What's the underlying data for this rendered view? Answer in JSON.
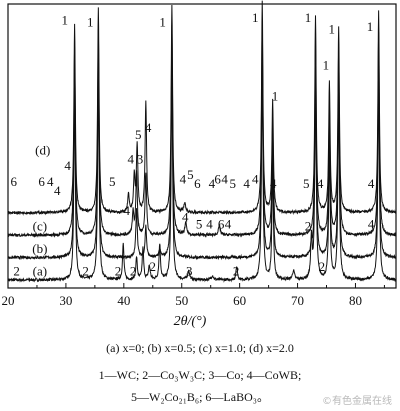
{
  "chart_data": {
    "type": "line",
    "xlabel": "2θ/(°)",
    "xlim": [
      20,
      87
    ],
    "xticks": [
      20,
      30,
      40,
      50,
      60,
      70,
      80
    ],
    "grid": false,
    "series": [
      {
        "name": "(a)",
        "baseline": 0.0,
        "noise": 0.006,
        "peaks": [
          [
            31.5,
            0.84,
            0.15
          ],
          [
            35.6,
            0.92,
            0.15
          ],
          [
            39.9,
            0.16,
            0.15
          ],
          [
            42.2,
            0.1,
            0.15
          ],
          [
            43.3,
            0.14,
            0.15
          ],
          [
            44.4,
            0.06,
            0.18
          ],
          [
            46.2,
            0.16,
            0.15
          ],
          [
            48.3,
            0.93,
            0.15
          ],
          [
            51.2,
            0.04,
            0.2
          ],
          [
            55.3,
            0.02,
            0.2
          ],
          [
            59.5,
            0.06,
            0.15
          ],
          [
            63.9,
            0.94,
            0.15
          ],
          [
            65.7,
            0.5,
            0.15
          ],
          [
            69.3,
            0.04,
            0.2
          ],
          [
            72.4,
            0.18,
            0.15
          ],
          [
            73.1,
            0.88,
            0.15
          ],
          [
            75.5,
            0.58,
            0.15
          ],
          [
            77.1,
            0.83,
            0.15
          ],
          [
            84.0,
            0.9,
            0.15
          ]
        ],
        "labels": [
          [
            "2",
            21.5,
            0.02
          ],
          [
            "(a)",
            25.5,
            0.02
          ],
          [
            "2",
            33.4,
            0.02
          ],
          [
            "2",
            39.0,
            0.02
          ],
          [
            "2",
            41.6,
            0.02
          ],
          [
            "2",
            45.0,
            0.04
          ],
          [
            "3",
            51.3,
            0.02
          ],
          [
            "2",
            59.4,
            0.02
          ],
          [
            "2",
            71.8,
            0.22
          ],
          [
            "2",
            74.2,
            0.04
          ]
        ]
      },
      {
        "name": "(b)",
        "baseline": 0.1,
        "noise": 0.006,
        "peaks": [
          [
            31.5,
            0.84,
            0.15
          ],
          [
            35.6,
            0.92,
            0.15
          ],
          [
            42.2,
            0.22,
            0.15
          ],
          [
            43.8,
            0.14,
            0.15
          ],
          [
            46.2,
            0.03,
            0.2
          ],
          [
            48.3,
            0.93,
            0.15
          ],
          [
            63.9,
            0.94,
            0.15
          ],
          [
            65.7,
            0.5,
            0.15
          ],
          [
            72.4,
            0.05,
            0.15
          ],
          [
            73.1,
            0.88,
            0.15
          ],
          [
            75.5,
            0.58,
            0.15
          ],
          [
            77.1,
            0.83,
            0.15
          ],
          [
            84.0,
            0.9,
            0.15
          ]
        ],
        "labels": [
          [
            "(b)",
            25.5,
            0.12
          ]
        ]
      },
      {
        "name": "(c)",
        "baseline": 0.2,
        "noise": 0.006,
        "peaks": [
          [
            31.5,
            0.84,
            0.15
          ],
          [
            35.6,
            0.92,
            0.15
          ],
          [
            41.6,
            0.1,
            0.15
          ],
          [
            42.2,
            0.28,
            0.15
          ],
          [
            43.8,
            0.28,
            0.15
          ],
          [
            48.3,
            0.93,
            0.15
          ],
          [
            50.7,
            0.05,
            0.2
          ],
          [
            56.5,
            0.04,
            0.2
          ],
          [
            63.9,
            0.94,
            0.15
          ],
          [
            65.7,
            0.5,
            0.15
          ],
          [
            73.1,
            0.88,
            0.15
          ],
          [
            75.5,
            0.58,
            0.15
          ],
          [
            77.1,
            0.83,
            0.15
          ],
          [
            84.0,
            0.9,
            0.15
          ]
        ],
        "labels": [
          [
            "(c)",
            25.5,
            0.22
          ],
          [
            "4",
            40.5,
            0.29
          ],
          [
            "4",
            50.6,
            0.26
          ],
          [
            "5",
            53.0,
            0.23
          ],
          [
            "4",
            54.8,
            0.23
          ],
          [
            "6",
            56.8,
            0.23
          ],
          [
            "4",
            58.0,
            0.23
          ],
          [
            "4",
            82.7,
            0.23
          ]
        ]
      },
      {
        "name": "(d)",
        "baseline": 0.3,
        "noise": 0.006,
        "peaks": [
          [
            31.5,
            0.84,
            0.15
          ],
          [
            35.6,
            0.92,
            0.15
          ],
          [
            40.8,
            0.08,
            0.15
          ],
          [
            41.8,
            0.16,
            0.15
          ],
          [
            42.3,
            0.3,
            0.15
          ],
          [
            43.8,
            0.5,
            0.15
          ],
          [
            48.3,
            0.93,
            0.15
          ],
          [
            50.5,
            0.04,
            0.2
          ],
          [
            63.9,
            0.94,
            0.15
          ],
          [
            65.7,
            0.5,
            0.15
          ],
          [
            73.1,
            0.88,
            0.15
          ],
          [
            75.5,
            0.58,
            0.15
          ],
          [
            77.1,
            0.83,
            0.15
          ],
          [
            84.0,
            0.9,
            0.15
          ]
        ],
        "labels": [
          [
            "6",
            21.0,
            0.42
          ],
          [
            "(d)",
            26.0,
            0.56
          ],
          [
            "6",
            25.8,
            0.42
          ],
          [
            "4",
            27.3,
            0.42
          ],
          [
            "4",
            28.5,
            0.38
          ],
          [
            "4",
            30.3,
            0.49
          ],
          [
            "5",
            38.0,
            0.42
          ],
          [
            "4",
            41.2,
            0.52
          ],
          [
            "3",
            42.8,
            0.52
          ],
          [
            "5",
            42.5,
            0.63
          ],
          [
            "4",
            44.2,
            0.66
          ],
          [
            "4",
            50.2,
            0.43
          ],
          [
            "5",
            51.5,
            0.45
          ],
          [
            "6",
            52.7,
            0.41
          ],
          [
            "4",
            55.2,
            0.41
          ],
          [
            "6",
            56.2,
            0.43
          ],
          [
            "4",
            57.4,
            0.43
          ],
          [
            "5",
            58.8,
            0.41
          ],
          [
            "4",
            61.2,
            0.41
          ],
          [
            "4",
            62.7,
            0.43
          ],
          [
            "4",
            65.8,
            0.41
          ],
          [
            "5",
            71.5,
            0.41
          ],
          [
            "4",
            73.9,
            0.41
          ],
          [
            "4",
            82.7,
            0.41
          ]
        ]
      }
    ],
    "top_labels": [
      [
        "1",
        29.8,
        1.14
      ],
      [
        "1",
        34.2,
        1.13
      ],
      [
        "1",
        46.7,
        1.13
      ],
      [
        "1",
        62.7,
        1.15
      ],
      [
        "1",
        66.1,
        0.8
      ],
      [
        "1",
        71.8,
        1.15
      ],
      [
        "1",
        74.9,
        0.94
      ],
      [
        "1",
        75.9,
        1.1
      ],
      [
        "1",
        82.5,
        1.11
      ]
    ]
  },
  "caption": {
    "samples": "(a) x=0; (b) x=0.5; (c) x=1.0; (d) x=2.0",
    "phases1": "1—WC; 2—Co₃W₃C; 3—Co; 4—CoWB;",
    "phases2": "5—W₂Co₂₁B₆; 6—LaBO₃。"
  },
  "watermark": "©有色金属在线"
}
